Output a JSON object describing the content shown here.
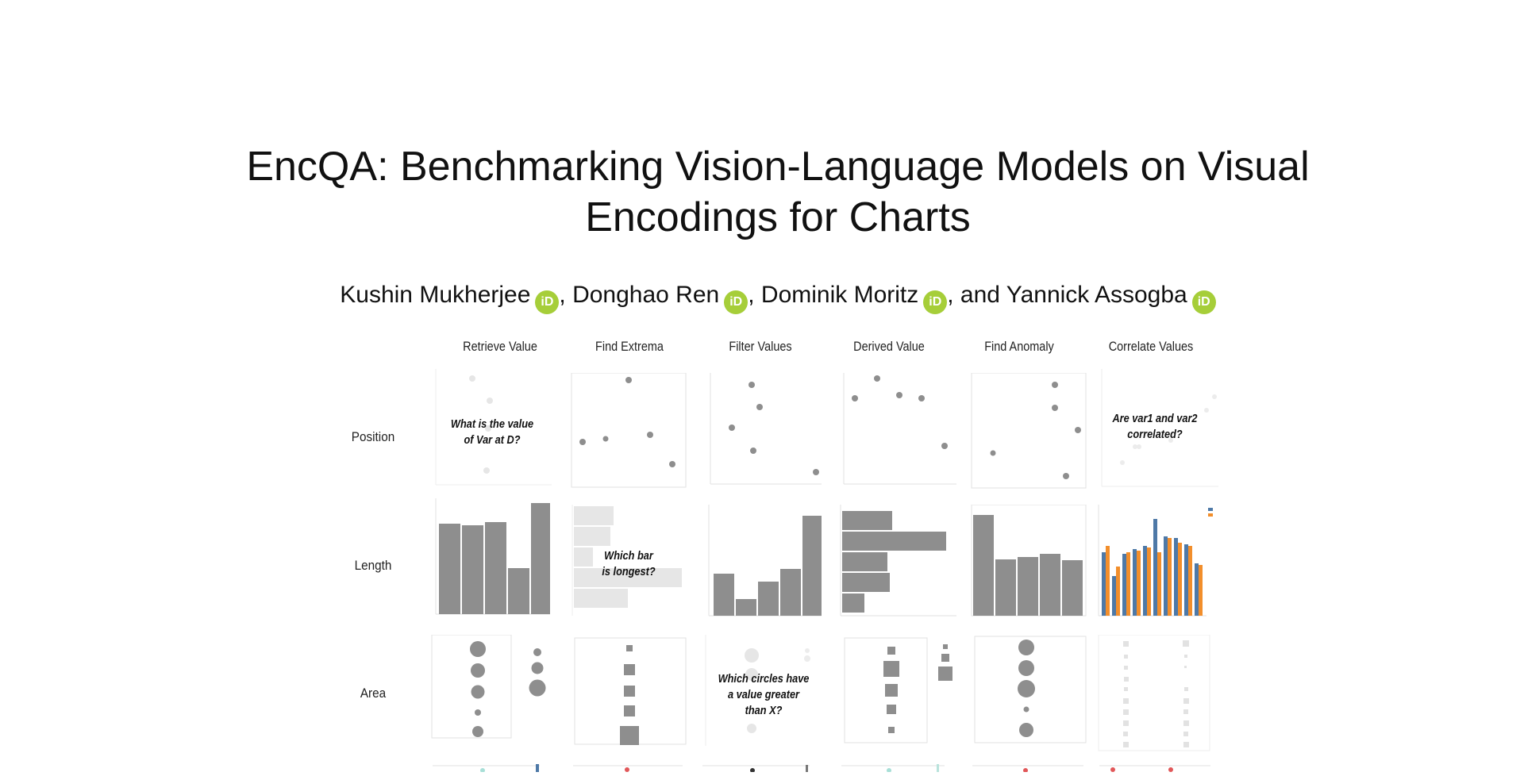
{
  "paper": {
    "title_line1": "EncQA: Benchmarking Vision-Language Models on Visual",
    "title_line2": "Encodings for Charts",
    "authors": [
      {
        "name": "Kushin Mukherjee",
        "sep": ", "
      },
      {
        "name": "Donghao Ren",
        "sep": ", "
      },
      {
        "name": "Dominik Moritz",
        "sep": ", and "
      },
      {
        "name": "Yannick Assogba",
        "sep": ""
      }
    ],
    "orcid_icon": "orcid-icon",
    "orcid_text": "iD",
    "orcid_color": "#a6ce39"
  },
  "figure": {
    "columns": [
      "Retrieve Value",
      "Find Extrema",
      "Filter Values",
      "Derived Value",
      "Find Anomaly",
      "Correlate Values"
    ],
    "rows": [
      "Position",
      "Length",
      "Area"
    ],
    "questions": {
      "position_retrieve": [
        "What is the value",
        "of Var at D?"
      ],
      "position_correlate": [
        "Are var1 and var2",
        "correlated?"
      ],
      "length_extrema": [
        "Which bar",
        "is longest?"
      ],
      "area_filter": [
        "Which circles have",
        "a value greater",
        "than X?"
      ]
    }
  }
}
